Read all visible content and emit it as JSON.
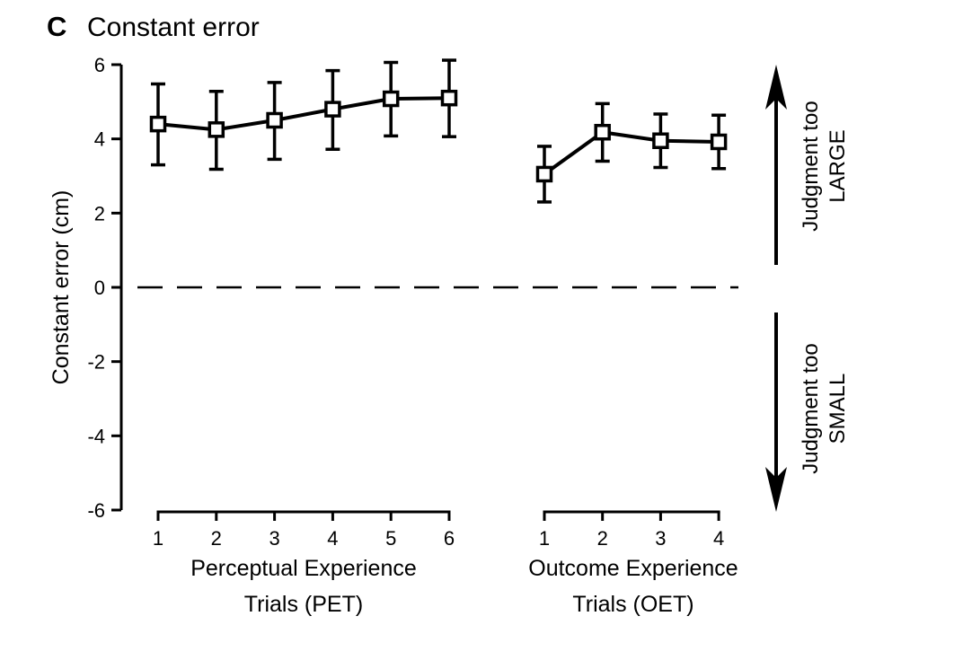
{
  "panel": {
    "letter": "C",
    "title": "Constant error"
  },
  "chart_data": {
    "type": "line",
    "ylabel": "Constant error (cm)",
    "ylim": [
      -6,
      6
    ],
    "yticks": [
      -6,
      -4,
      -2,
      0,
      2,
      4,
      6
    ],
    "reference_line": {
      "y": 0,
      "style": "dashed"
    },
    "marker": "open-square",
    "groups": [
      {
        "name_lines": [
          "Perceptual Experience",
          "Trials (PET)"
        ],
        "x": [
          1,
          2,
          3,
          4,
          5,
          6
        ],
        "values": [
          4.4,
          4.25,
          4.5,
          4.8,
          5.08,
          5.1
        ],
        "error_upper": [
          5.48,
          5.28,
          5.52,
          5.84,
          6.06,
          6.12
        ],
        "error_lower": [
          3.3,
          3.18,
          3.45,
          3.72,
          4.08,
          4.06
        ]
      },
      {
        "name_lines": [
          "Outcome Experience",
          "Trials (OET)"
        ],
        "x": [
          1,
          2,
          3,
          4
        ],
        "values": [
          3.05,
          4.18,
          3.95,
          3.92
        ],
        "error_upper": [
          3.8,
          4.95,
          4.67,
          4.64
        ],
        "error_lower": [
          2.3,
          3.4,
          3.23,
          3.2
        ]
      }
    ],
    "annotations": [
      {
        "direction": "up",
        "lines": [
          "Judgment too",
          "LARGE"
        ]
      },
      {
        "direction": "down",
        "lines": [
          "Judgment too",
          "SMALL"
        ]
      }
    ]
  }
}
